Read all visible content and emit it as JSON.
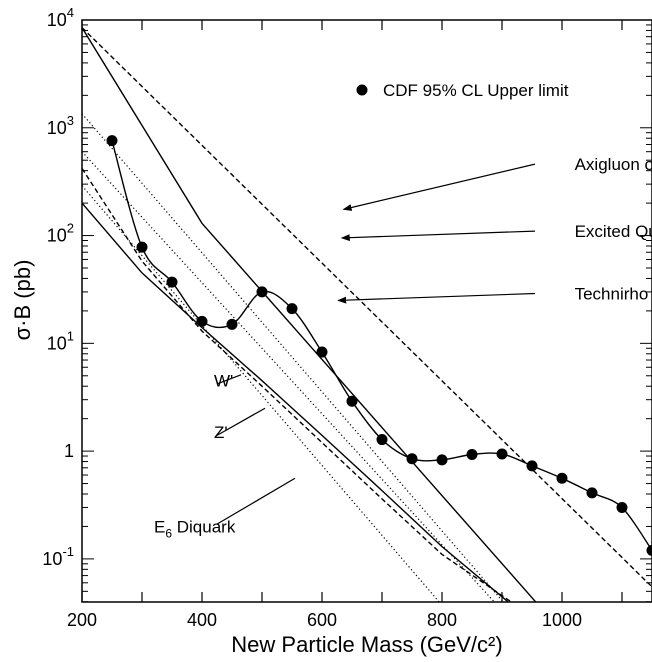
{
  "chart_data": {
    "type": "line",
    "xlabel": "New Particle Mass (GeV/c²)",
    "ylabel": "σ·B (pb)",
    "xlim": [
      200,
      1150
    ],
    "ylim_log10": [
      -1.4,
      4
    ],
    "y_scale": "log",
    "x_ticks": [
      {
        "value": 200,
        "label": "200"
      },
      {
        "value": 300,
        "label": ""
      },
      {
        "value": 400,
        "label": "400"
      },
      {
        "value": 500,
        "label": ""
      },
      {
        "value": 600,
        "label": "600"
      },
      {
        "value": 700,
        "label": ""
      },
      {
        "value": 800,
        "label": "800"
      },
      {
        "value": 900,
        "label": ""
      },
      {
        "value": 1000,
        "label": "1000"
      },
      {
        "value": 1100,
        "label": ""
      }
    ],
    "y_ticks": [
      {
        "exp": 4,
        "base": "10",
        "sup": "4"
      },
      {
        "exp": 3,
        "base": "10",
        "sup": "3"
      },
      {
        "exp": 2,
        "base": "10",
        "sup": "2"
      },
      {
        "exp": 1,
        "base": "10",
        "sup": "1"
      },
      {
        "exp": 0,
        "base": "1",
        "sup": ""
      },
      {
        "exp": -1,
        "base": "10",
        "sup": "-1"
      }
    ],
    "legend": {
      "label": "CDF 95% CL Upper limit",
      "position": "top-right"
    },
    "series": [
      {
        "name": "CDF 95% CL Upper limit",
        "style": "markers-solid",
        "points": [
          [
            250,
            760
          ],
          [
            300,
            78
          ],
          [
            350,
            37
          ],
          [
            400,
            16
          ],
          [
            450,
            15
          ],
          [
            500,
            30
          ],
          [
            550,
            21
          ],
          [
            600,
            8.3
          ],
          [
            650,
            2.9
          ],
          [
            700,
            1.28
          ],
          [
            750,
            0.85
          ],
          [
            800,
            0.83
          ],
          [
            850,
            0.93
          ],
          [
            900,
            0.94
          ],
          [
            950,
            0.73
          ],
          [
            1000,
            0.56
          ],
          [
            1050,
            0.41
          ],
          [
            1100,
            0.3
          ],
          [
            1150,
            0.12
          ]
        ]
      },
      {
        "name": "Axigluon or Coloron",
        "style": "dashed",
        "points": [
          [
            200,
            8500
          ],
          [
            1150,
            0.055
          ]
        ]
      },
      {
        "name": "Excited Quark",
        "style": "solid",
        "points": [
          [
            200,
            8500
          ],
          [
            400,
            130
          ],
          [
            956,
            0.04
          ]
        ]
      },
      {
        "name": "Technirho",
        "style": "dashed",
        "points": [
          [
            200,
            420
          ],
          [
            300,
            58
          ],
          [
            400,
            13
          ],
          [
            500,
            4
          ],
          [
            600,
            1.2
          ],
          [
            700,
            0.36
          ],
          [
            800,
            0.11
          ],
          [
            915,
            0.04
          ]
        ]
      },
      {
        "name": "W'",
        "style": "dotted",
        "points": [
          [
            200,
            1350
          ],
          [
            902,
            0.04
          ]
        ]
      },
      {
        "name": "Z'",
        "style": "dotted",
        "points": [
          [
            200,
            600
          ],
          [
            887,
            0.04
          ]
        ]
      },
      {
        "name": "E6 Diquark",
        "style": "solid",
        "points": [
          [
            200,
            200
          ],
          [
            300,
            45
          ],
          [
            400,
            14
          ],
          [
            500,
            4.5
          ],
          [
            600,
            1.4
          ],
          [
            700,
            0.43
          ],
          [
            800,
            0.13
          ],
          [
            910,
            0.04
          ]
        ]
      },
      {
        "name": "",
        "style": "dotted",
        "points": [
          [
            200,
            290
          ],
          [
            795,
            0.04
          ]
        ]
      }
    ],
    "annotations": [
      {
        "label": "Axigluon or Coloron",
        "sub": "",
        "suffix": "",
        "text_x": 1021,
        "text_y": 460,
        "arrow_from": [
          955,
          460
        ],
        "arrow_to": [
          636,
          175
        ]
      },
      {
        "label": "Excited Quark",
        "sub": "",
        "suffix": "",
        "text_x": 1021,
        "text_y": 110,
        "arrow_from": [
          955,
          110
        ],
        "arrow_to": [
          633,
          95
        ]
      },
      {
        "label": "Technirho",
        "sub": "",
        "suffix": "",
        "text_x": 1021,
        "text_y": 29,
        "arrow_from": [
          955,
          29
        ],
        "arrow_to": [
          627,
          25
        ]
      },
      {
        "label": "W'",
        "sub": "",
        "suffix": "",
        "text_x": 420,
        "text_y": 4.5,
        "arrow_from": [
          425,
          4.2
        ],
        "arrow_to": [
          465,
          5.1
        ]
      },
      {
        "label": "Z'",
        "sub": "",
        "suffix": "",
        "text_x": 420,
        "text_y": 1.5,
        "arrow_from": [
          425,
          1.4
        ],
        "arrow_to": [
          505,
          2.5
        ]
      },
      {
        "label": "E",
        "sub": "6",
        "suffix": " Diquark",
        "text_x": 320,
        "text_y": 0.2,
        "arrow_from": [
          425,
          0.21
        ],
        "arrow_to": [
          555,
          0.56
        ]
      }
    ]
  }
}
